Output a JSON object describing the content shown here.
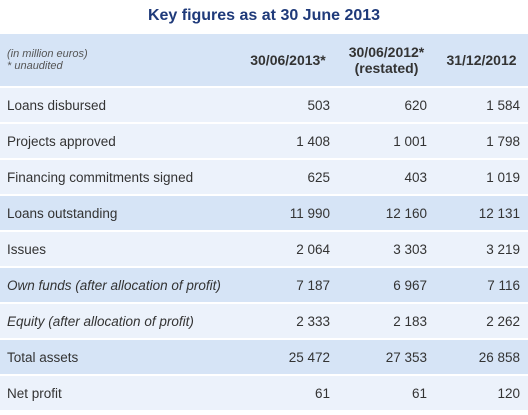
{
  "title": "Key figures as at 30 June 2013",
  "header": {
    "unit_note": "(in million euros)",
    "unaudited_note": "* unaudited",
    "col1": "30/06/2013*",
    "col2_line1": "30/06/2012*",
    "col2_line2": "(restated)",
    "col3": "31/12/2012"
  },
  "rows": [
    {
      "label": "Loans disbursed",
      "v1": "503",
      "v2": "620",
      "v3": "1 584"
    },
    {
      "label": "Projects approved",
      "v1": "1 408",
      "v2": "1 001",
      "v3": "1 798"
    },
    {
      "label": "Financing commitments signed",
      "v1": "625",
      "v2": "403",
      "v3": "1 019"
    },
    {
      "label": "Loans outstanding",
      "v1": "11 990",
      "v2": "12 160",
      "v3": "12 131"
    },
    {
      "label": "Issues",
      "v1": "2 064",
      "v2": "3 303",
      "v3": "3 219"
    },
    {
      "label": "Own funds (after allocation of profit)",
      "v1": "7 187",
      "v2": "6 967",
      "v3": "7 116"
    },
    {
      "label": "Equity (after allocation of profit)",
      "v1": "2 333",
      "v2": "2 183",
      "v3": "2 262"
    },
    {
      "label": "Total assets",
      "v1": "25 472",
      "v2": "27 353",
      "v3": "26 858"
    },
    {
      "label": "Net profit",
      "v1": "61",
      "v2": "61",
      "v3": "120"
    }
  ],
  "colors": {
    "title": "#1f3a7a",
    "header_bg": "#d6e4f6",
    "row_light": "#ecf2fb",
    "row_dark": "#d6e4f6"
  }
}
